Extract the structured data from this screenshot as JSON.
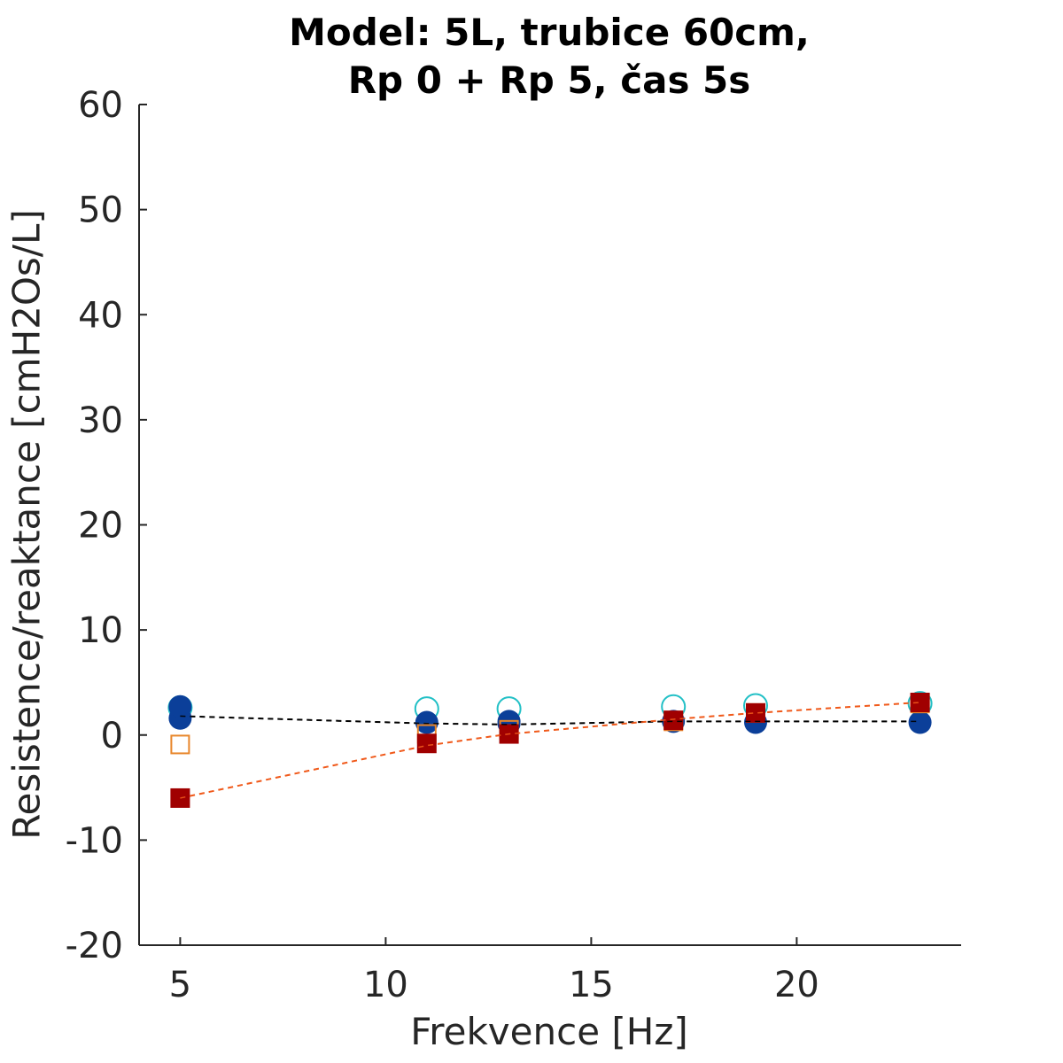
{
  "chart_data": {
    "type": "scatter",
    "title_lines": [
      "Model: 5L, trubice 60cm,",
      "Rp 0 + Rp 5, čas 5s"
    ],
    "xlabel": "Frekvence [Hz]",
    "ylabel": "Resistence/reaktance [cmH2Os/L]",
    "xlim": [
      4,
      24
    ],
    "ylim": [
      -20,
      60
    ],
    "xticks": [
      5,
      10,
      15,
      20
    ],
    "yticks": [
      -20,
      -10,
      0,
      10,
      20,
      30,
      40,
      50,
      60
    ],
    "grid": false,
    "series": [
      {
        "marker": "circle-open",
        "color": "#22c0c6",
        "x": [
          5,
          11,
          13,
          17,
          19,
          23
        ],
        "y": [
          2.6,
          2.5,
          2.5,
          2.7,
          2.8,
          3.0
        ]
      },
      {
        "marker": "circle-filled",
        "color": "#0b3f99",
        "x": [
          5,
          11,
          13,
          17,
          19,
          23
        ],
        "y": [
          1.6,
          1.2,
          1.1,
          1.3,
          1.2,
          1.2
        ]
      },
      {
        "marker": "circle-filled",
        "color": "#0b3f99",
        "x": [
          5,
          13
        ],
        "y": [
          2.7,
          1.3
        ]
      },
      {
        "marker": "square-open",
        "color": "#e8862a",
        "x": [
          5,
          11,
          13,
          17,
          19,
          23
        ],
        "y": [
          -0.9,
          0.1,
          0.5,
          1.3,
          2.1,
          3.0
        ]
      },
      {
        "marker": "square-filled",
        "color": "#a00000",
        "x": [
          5,
          11,
          13,
          17,
          19,
          23
        ],
        "y": [
          -6.0,
          -0.8,
          0.1,
          1.4,
          2.1,
          3.1
        ]
      },
      {
        "marker": "line-dashed",
        "color": "#000000",
        "x": [
          5,
          11,
          13,
          17,
          19,
          23
        ],
        "y": [
          1.8,
          1.1,
          1.0,
          1.3,
          1.3,
          1.3
        ]
      },
      {
        "marker": "line-dashed",
        "color": "#f05a1c",
        "x": [
          5,
          11,
          13,
          17,
          19,
          23
        ],
        "y": [
          -6.0,
          -1.0,
          0.1,
          1.5,
          2.1,
          3.1
        ]
      }
    ]
  }
}
